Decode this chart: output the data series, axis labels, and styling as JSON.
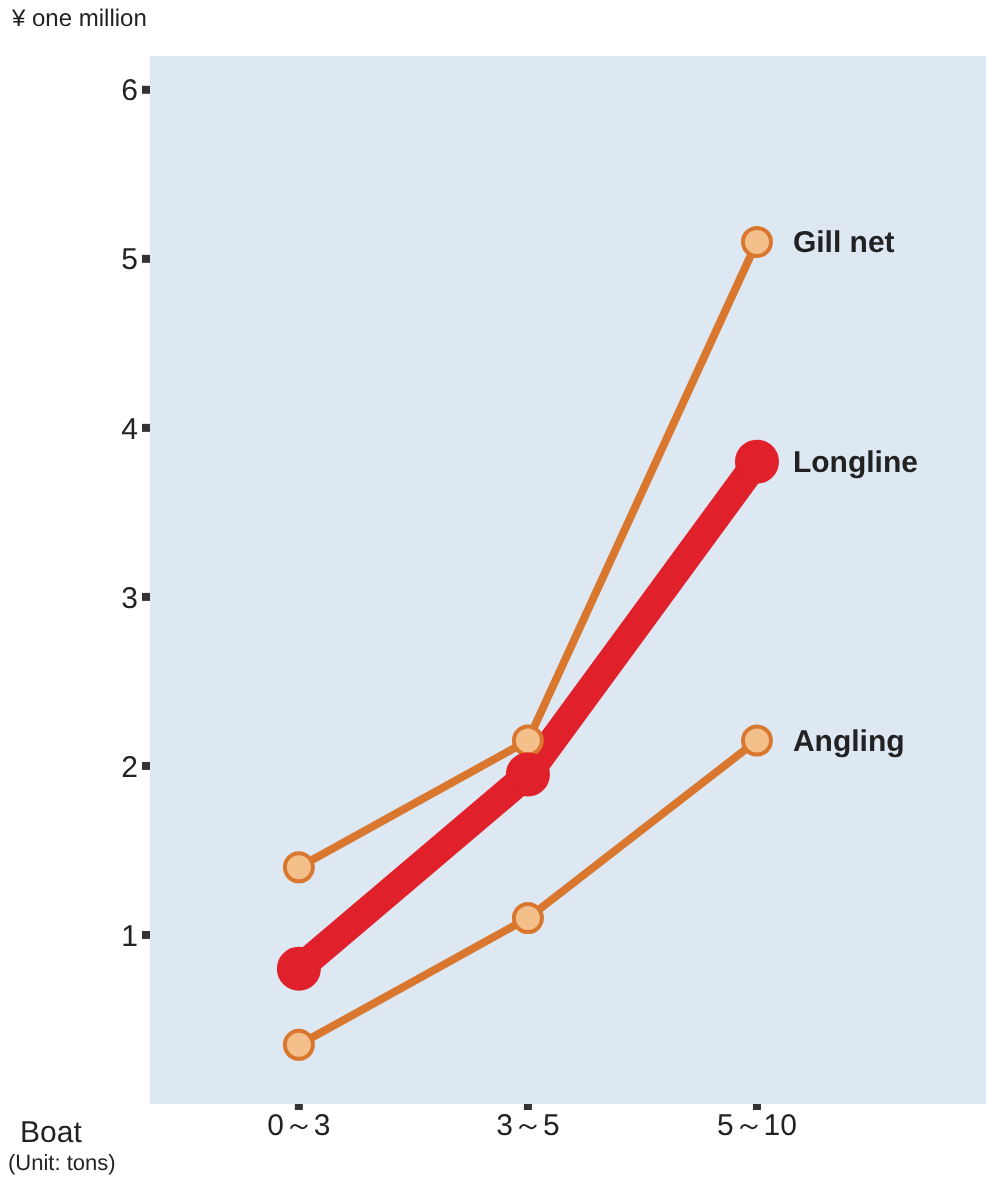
{
  "chart_data": {
    "type": "line",
    "ylabel": "¥ one million",
    "xlabel": "Boat",
    "annotations": [
      "(Unit: tons)"
    ],
    "categories": [
      "0～3",
      "3～5",
      "5～10"
    ],
    "ylim": [
      0,
      6.2
    ],
    "yticks": [
      1,
      2,
      3,
      4,
      5,
      6
    ],
    "marker": "circle",
    "legend": false,
    "series": [
      {
        "name": "Gill net",
        "color": "#d9772e",
        "values": [
          1.4,
          2.15,
          5.1
        ]
      },
      {
        "name": "Longline",
        "color": "#e0202a",
        "values": [
          0.8,
          1.95,
          3.8
        ]
      },
      {
        "name": "Angling",
        "color": "#d9772e",
        "values": [
          0.35,
          1.1,
          2.15
        ]
      }
    ]
  }
}
